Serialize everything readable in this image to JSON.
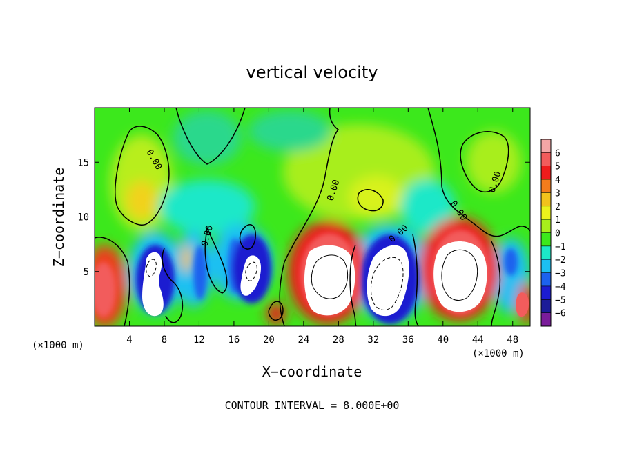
{
  "chart_data": {
    "type": "heatmap",
    "title": "vertical velocity",
    "xlabel": "X−coordinate",
    "ylabel": "Z−coordinate",
    "x_unit_left": "(×1000 m)",
    "x_unit_right": "(×1000 m)",
    "footer": "CONTOUR INTERVAL = 8.000E+00",
    "xlim": [
      0,
      50
    ],
    "ylim": [
      0,
      20
    ],
    "x_ticks": [
      4,
      8,
      12,
      16,
      20,
      24,
      28,
      32,
      36,
      40,
      44,
      48
    ],
    "x_tick_labels": [
      "4",
      "8",
      "12",
      "16",
      "20",
      "24",
      "28",
      "32",
      "36",
      "40",
      "44",
      "48"
    ],
    "y_ticks": [
      5,
      10,
      15
    ],
    "y_tick_labels": [
      "5",
      "10",
      "15"
    ],
    "colorbar": {
      "levels": [
        6,
        5,
        4,
        3,
        2,
        1,
        0,
        -1,
        -2,
        -3,
        -4,
        -5,
        -6
      ],
      "labels": [
        "6",
        "5",
        "4",
        "3",
        "2",
        "1",
        "0",
        "−1",
        "−2",
        "−3",
        "−4",
        "−5",
        "−6"
      ],
      "colors": [
        "#f4a6a6",
        "#f25c5c",
        "#ee1c1c",
        "#f47c1c",
        "#f2c21c",
        "#ecf21c",
        "#a8ee1c",
        "#3ce81c",
        "#1ce8c8",
        "#1cc0f2",
        "#1c62ee",
        "#1c1cd0",
        "#1c1c98",
        "#7a1c9a"
      ]
    },
    "contour_labels": [
      "0.00",
      "0.00",
      "0.00",
      "0.00",
      "0.00",
      "0.00",
      "0.00"
    ],
    "features": [
      {
        "kind": "updraft",
        "x_center": 1,
        "z_center": 3.5,
        "value": 4
      },
      {
        "kind": "downdraft",
        "x_center": 6.5,
        "z_center": 4,
        "value": -6
      },
      {
        "kind": "downdraft",
        "x_center": 11,
        "z_center": 5,
        "value": -4
      },
      {
        "kind": "downdraft",
        "x_center": 18,
        "z_center": 5,
        "value": -6
      },
      {
        "kind": "updraft",
        "x_center": 20.5,
        "z_center": 1.5,
        "value": 5
      },
      {
        "kind": "updraft",
        "x_center": 27,
        "z_center": 4.5,
        "value": 6
      },
      {
        "kind": "downdraft",
        "x_center": 33.5,
        "z_center": 4.5,
        "value": -6
      },
      {
        "kind": "updraft",
        "x_center": 41.5,
        "z_center": 5,
        "value": 6
      },
      {
        "kind": "downdraft",
        "x_center": 47.5,
        "z_center": 5,
        "value": -4
      },
      {
        "kind": "updraft",
        "x_center": 49.3,
        "z_center": 2.5,
        "value": 5
      },
      {
        "kind": "weak-updraft",
        "x_center": 5.5,
        "z_center": 12.5,
        "value": 2
      },
      {
        "kind": "weak-updraft",
        "x_center": 28,
        "z_center": 13,
        "value": 1
      },
      {
        "kind": "weak-updraft",
        "x_center": 43,
        "z_center": 14,
        "value": 1
      }
    ],
    "grid": false,
    "legend": "colorbar-right"
  }
}
